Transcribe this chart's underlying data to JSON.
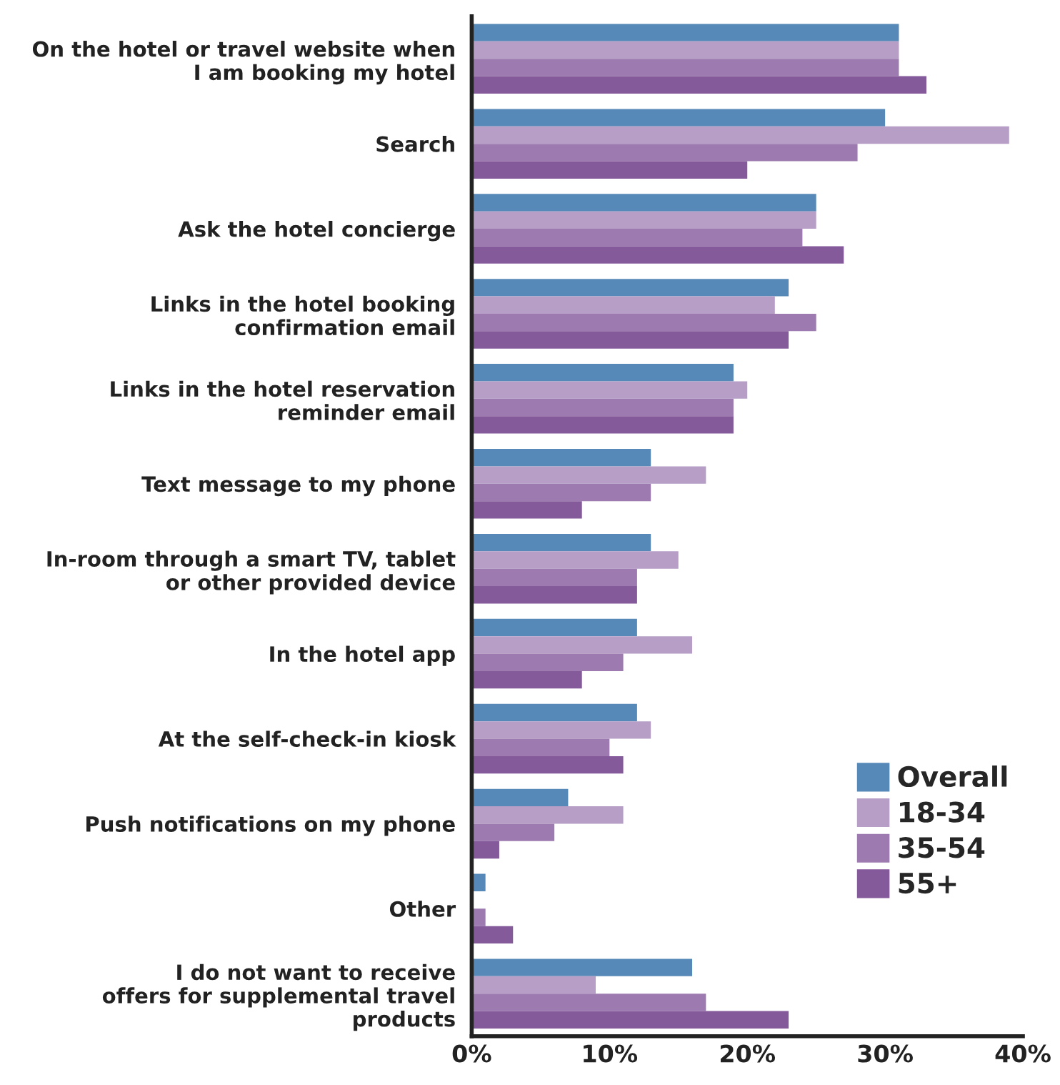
{
  "chart_data": {
    "type": "bar",
    "orientation": "horizontal",
    "categories": [
      "On the hotel or travel website when\nI am booking my hotel",
      "Search",
      "Ask the hotel concierge",
      "Links in the hotel booking\nconfirmation email",
      "Links in the hotel reservation\nreminder email",
      "Text message to my phone",
      "In-room through a smart TV, tablet\nor other provided device",
      "In the hotel app",
      "At the self-check-in kiosk",
      "Push notifications on my phone",
      "Other",
      "I do not want to receive\noffers for supplemental travel\nproducts"
    ],
    "series": [
      {
        "name": "Overall",
        "color": "#5789b8",
        "values": [
          31,
          30,
          25,
          23,
          19,
          13,
          13,
          12,
          12,
          7,
          1,
          16
        ]
      },
      {
        "name": "18-34",
        "color": "#b69ec7",
        "values": [
          31,
          39,
          25,
          22,
          20,
          17,
          15,
          16,
          13,
          11,
          0,
          9
        ]
      },
      {
        "name": "35-54",
        "color": "#9d7ab0",
        "values": [
          31,
          28,
          24,
          25,
          19,
          13,
          12,
          11,
          10,
          6,
          1,
          17
        ]
      },
      {
        "name": "55+",
        "color": "#855a9b",
        "values": [
          33,
          20,
          27,
          23,
          19,
          8,
          12,
          8,
          11,
          2,
          3,
          23
        ]
      }
    ],
    "xlim": [
      0,
      40
    ],
    "xticks": [
      {
        "value": 0,
        "label": "0%"
      },
      {
        "value": 10,
        "label": "10%"
      },
      {
        "value": 20,
        "label": "20%"
      },
      {
        "value": 30,
        "label": "30%"
      },
      {
        "value": 40,
        "label": "40%"
      }
    ],
    "grid": false,
    "legend": "bottom right"
  }
}
